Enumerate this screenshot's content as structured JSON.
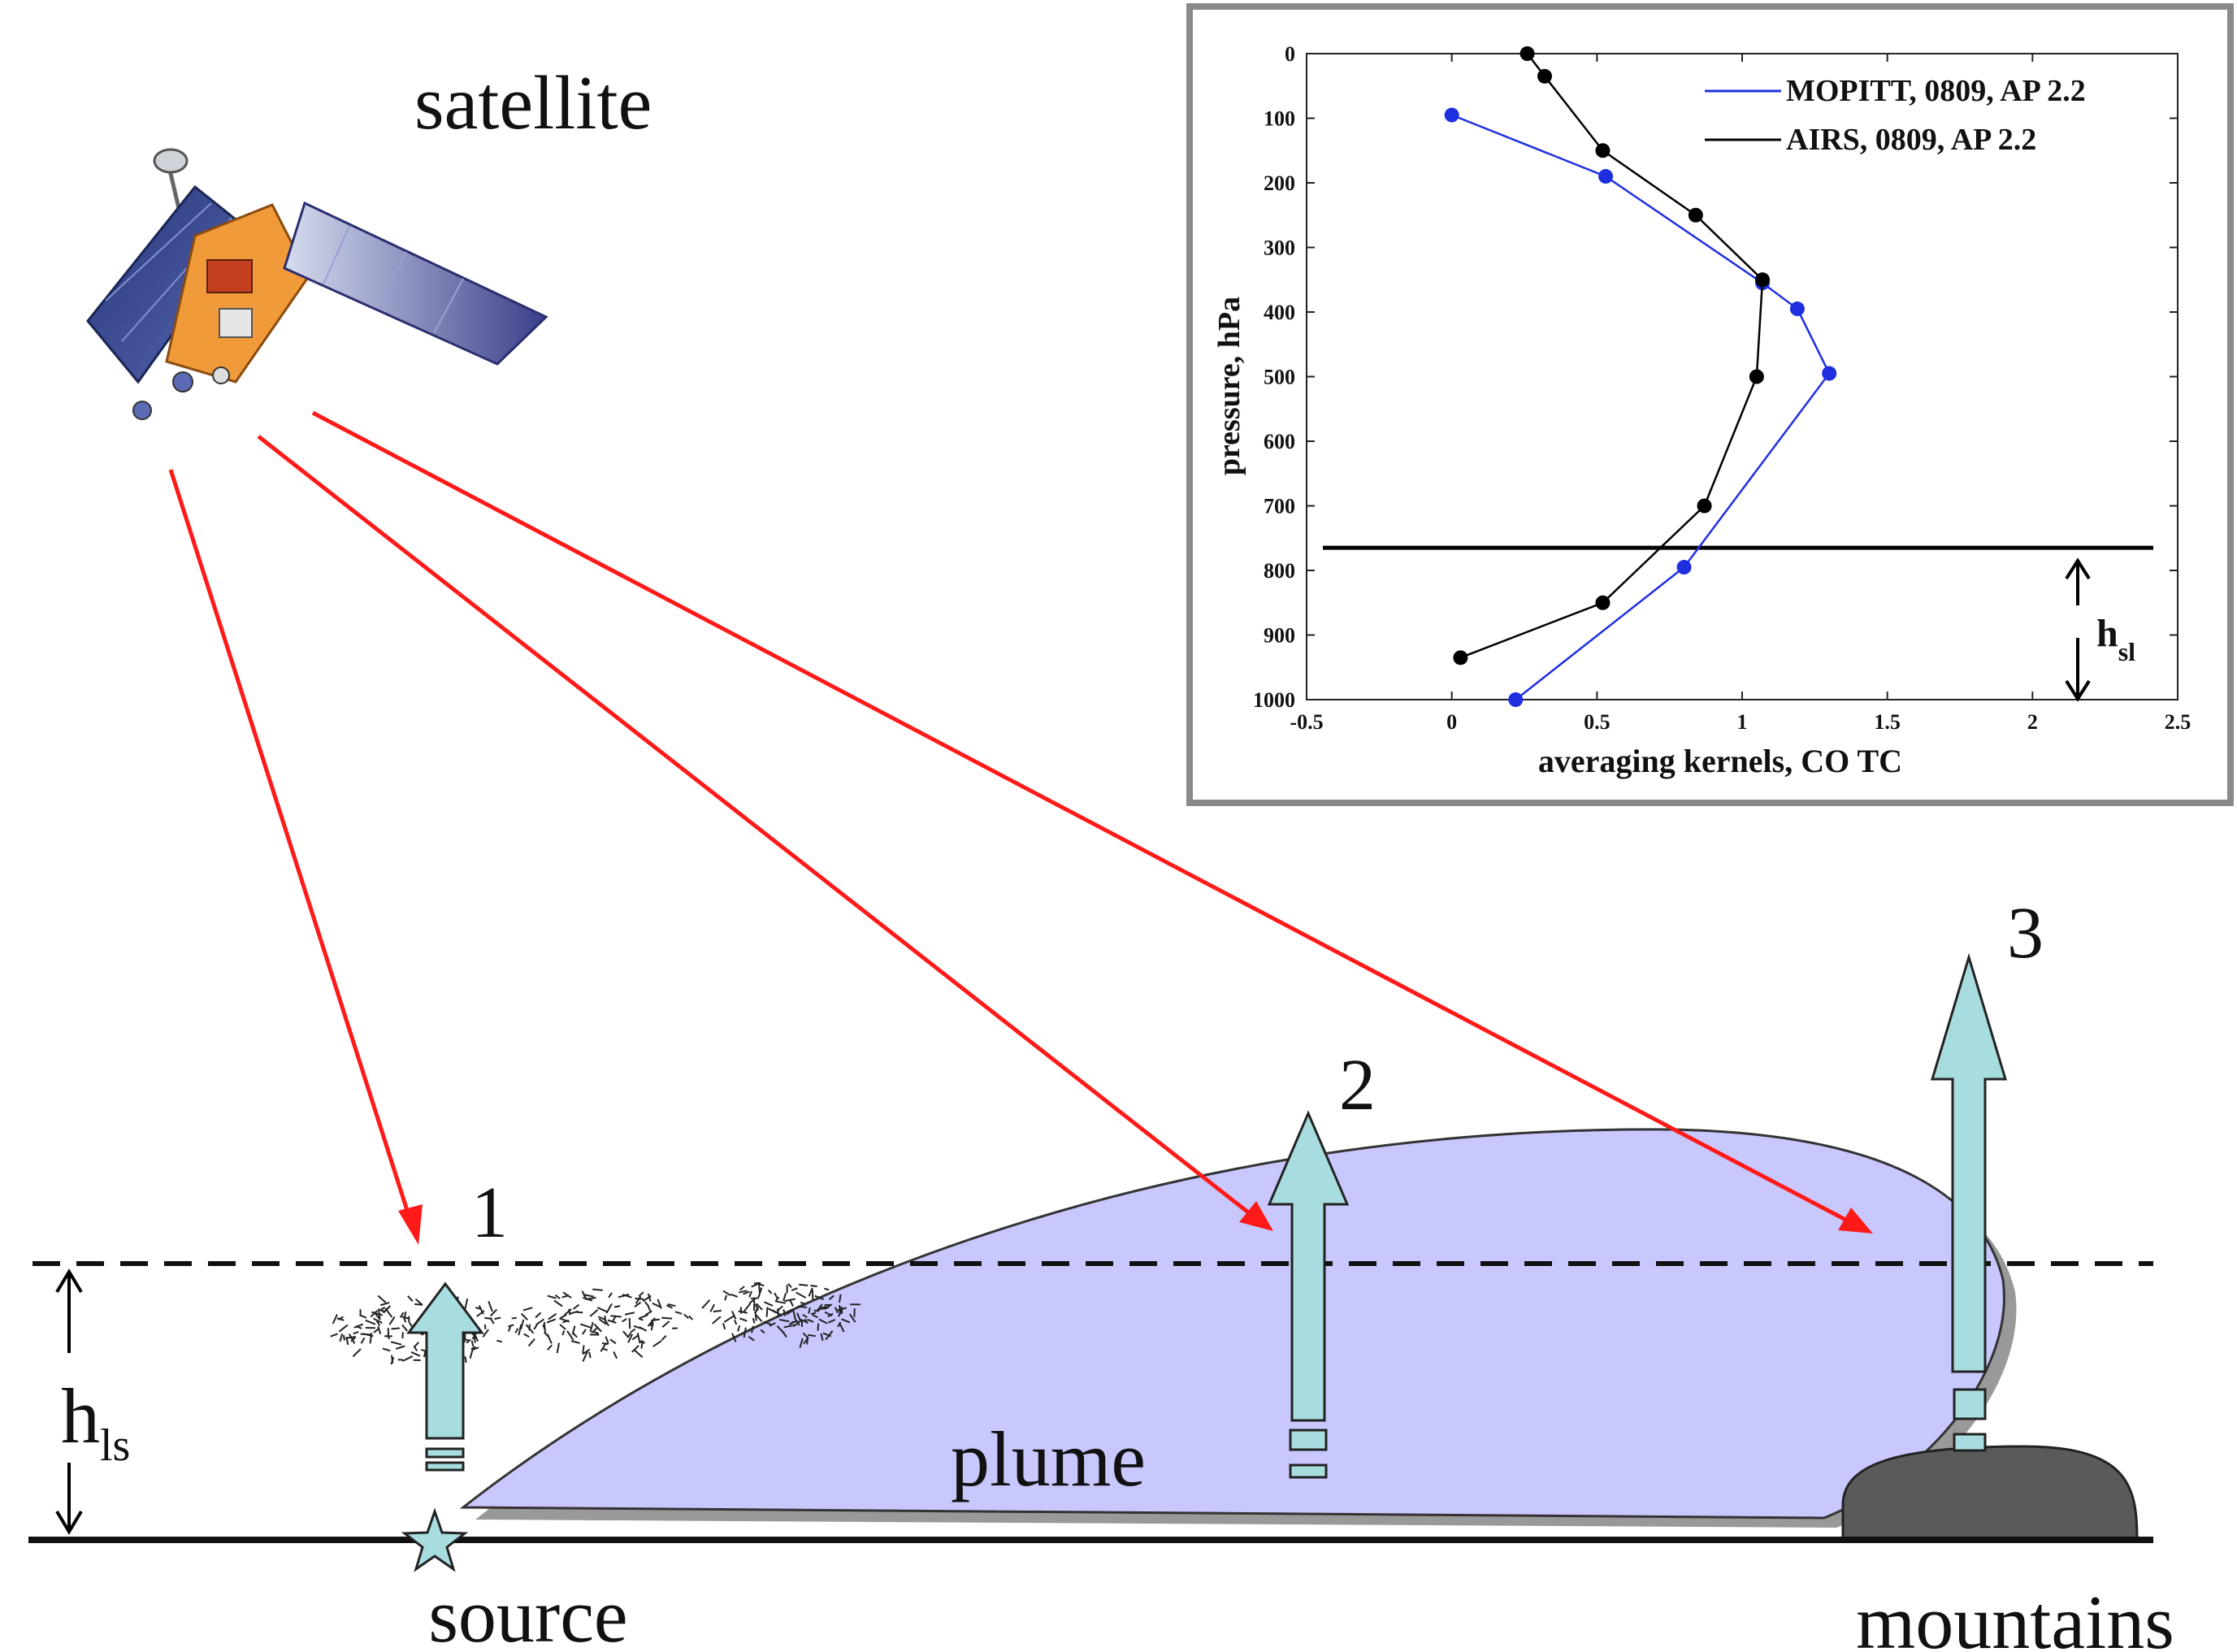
{
  "labels": {
    "satellite": "satellite",
    "plume": "plume",
    "source": "source",
    "mountains": "mountains",
    "marker_1": "1",
    "marker_2": "2",
    "marker_3": "3",
    "h_ls_main": "h",
    "h_ls_sub": "ls",
    "h_sl_main": "h",
    "h_sl_sub": "sl"
  },
  "colors": {
    "ray": "#ff1a1a",
    "plume_fill": "#c8c8ff",
    "arrow_fill": "#a8dde0",
    "mountain": "#5a5a5a",
    "mopitt": "#1f2fe0",
    "airs": "#000000"
  },
  "chart_data": {
    "type": "line",
    "title": "",
    "xlabel": "averaging kernels, CO TC",
    "ylabel": "pressure, hPa",
    "xlim": [
      -0.5,
      2.5
    ],
    "ylim": [
      0,
      1000
    ],
    "y_inverted": true,
    "xticks": [
      "-0.5",
      "0",
      "0.5",
      "1",
      "1.5",
      "2",
      "2.5"
    ],
    "yticks": [
      "0",
      "100",
      "200",
      "300",
      "400",
      "500",
      "600",
      "700",
      "800",
      "900",
      "1000"
    ],
    "legend_position": "top-right",
    "reference_line_pressure": 765,
    "series": [
      {
        "name": "MOPITT, 0809, AP 2.2",
        "color": "#1f2fe0",
        "x": [
          0.0,
          0.53,
          1.07,
          1.19,
          1.3,
          0.8,
          0.22
        ],
        "y": [
          95,
          190,
          355,
          395,
          495,
          795,
          1000
        ]
      },
      {
        "name": "AIRS, 0809, AP 2.2",
        "color": "#000000",
        "x": [
          0.26,
          0.32,
          0.52,
          0.84,
          1.07,
          1.05,
          0.87,
          0.52,
          0.03
        ],
        "y": [
          0,
          35,
          150,
          250,
          350,
          500,
          700,
          850,
          935
        ]
      }
    ]
  }
}
